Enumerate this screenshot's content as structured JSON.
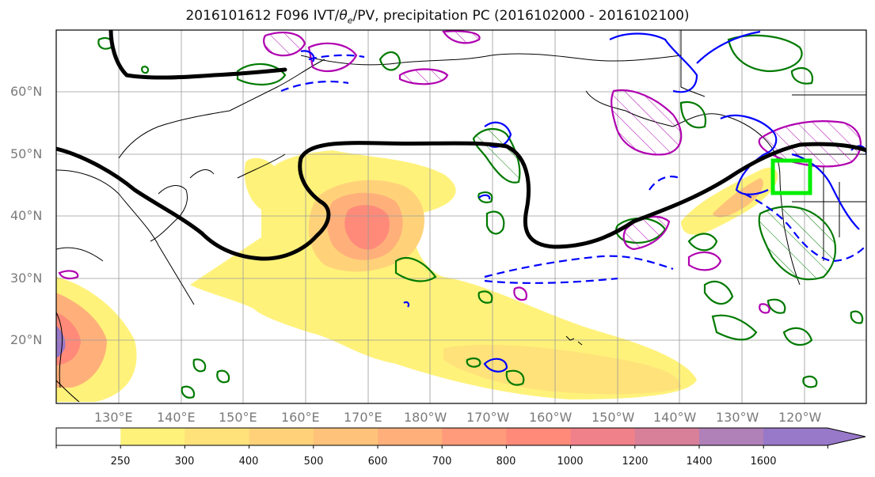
{
  "title": {
    "prefix": "2016101612 F096 IVT/",
    "theta": "θ",
    "theta_sub": "e",
    "suffix": "/PV, precipitation PC (2016102000 - 2016102100)"
  },
  "axes": {
    "lat_labels": [
      "60°N",
      "50°N",
      "40°N",
      "30°N",
      "20°N"
    ],
    "lon_labels": [
      "130°E",
      "140°E",
      "150°E",
      "160°E",
      "170°E",
      "180°W",
      "170°W",
      "160°W",
      "150°W",
      "140°W",
      "130°W",
      "120°W"
    ]
  },
  "colorbar": {
    "levels": [
      "250",
      "300",
      "400",
      "500",
      "600",
      "700",
      "800",
      "1000",
      "1200",
      "1400",
      "1600"
    ],
    "colors": [
      "#ffffff",
      "#fff27a",
      "#ffe27a",
      "#ffd27a",
      "#ffc27a",
      "#ffb07a",
      "#ff9a7a",
      "#ff8a7a",
      "#f0808a",
      "#d8809a",
      "#b080b8",
      "#9878c8"
    ]
  },
  "colors": {
    "ivt_low": "#fff27a",
    "ivt_high": "#ff8a7a",
    "theta_e_contour": "#000000",
    "pv_positive": "#0000ff",
    "precip_pc": "#b000b0",
    "moisture_green": "#007a00",
    "target_box": "#00ee00"
  },
  "target_box_icon": "square-outline-icon"
}
